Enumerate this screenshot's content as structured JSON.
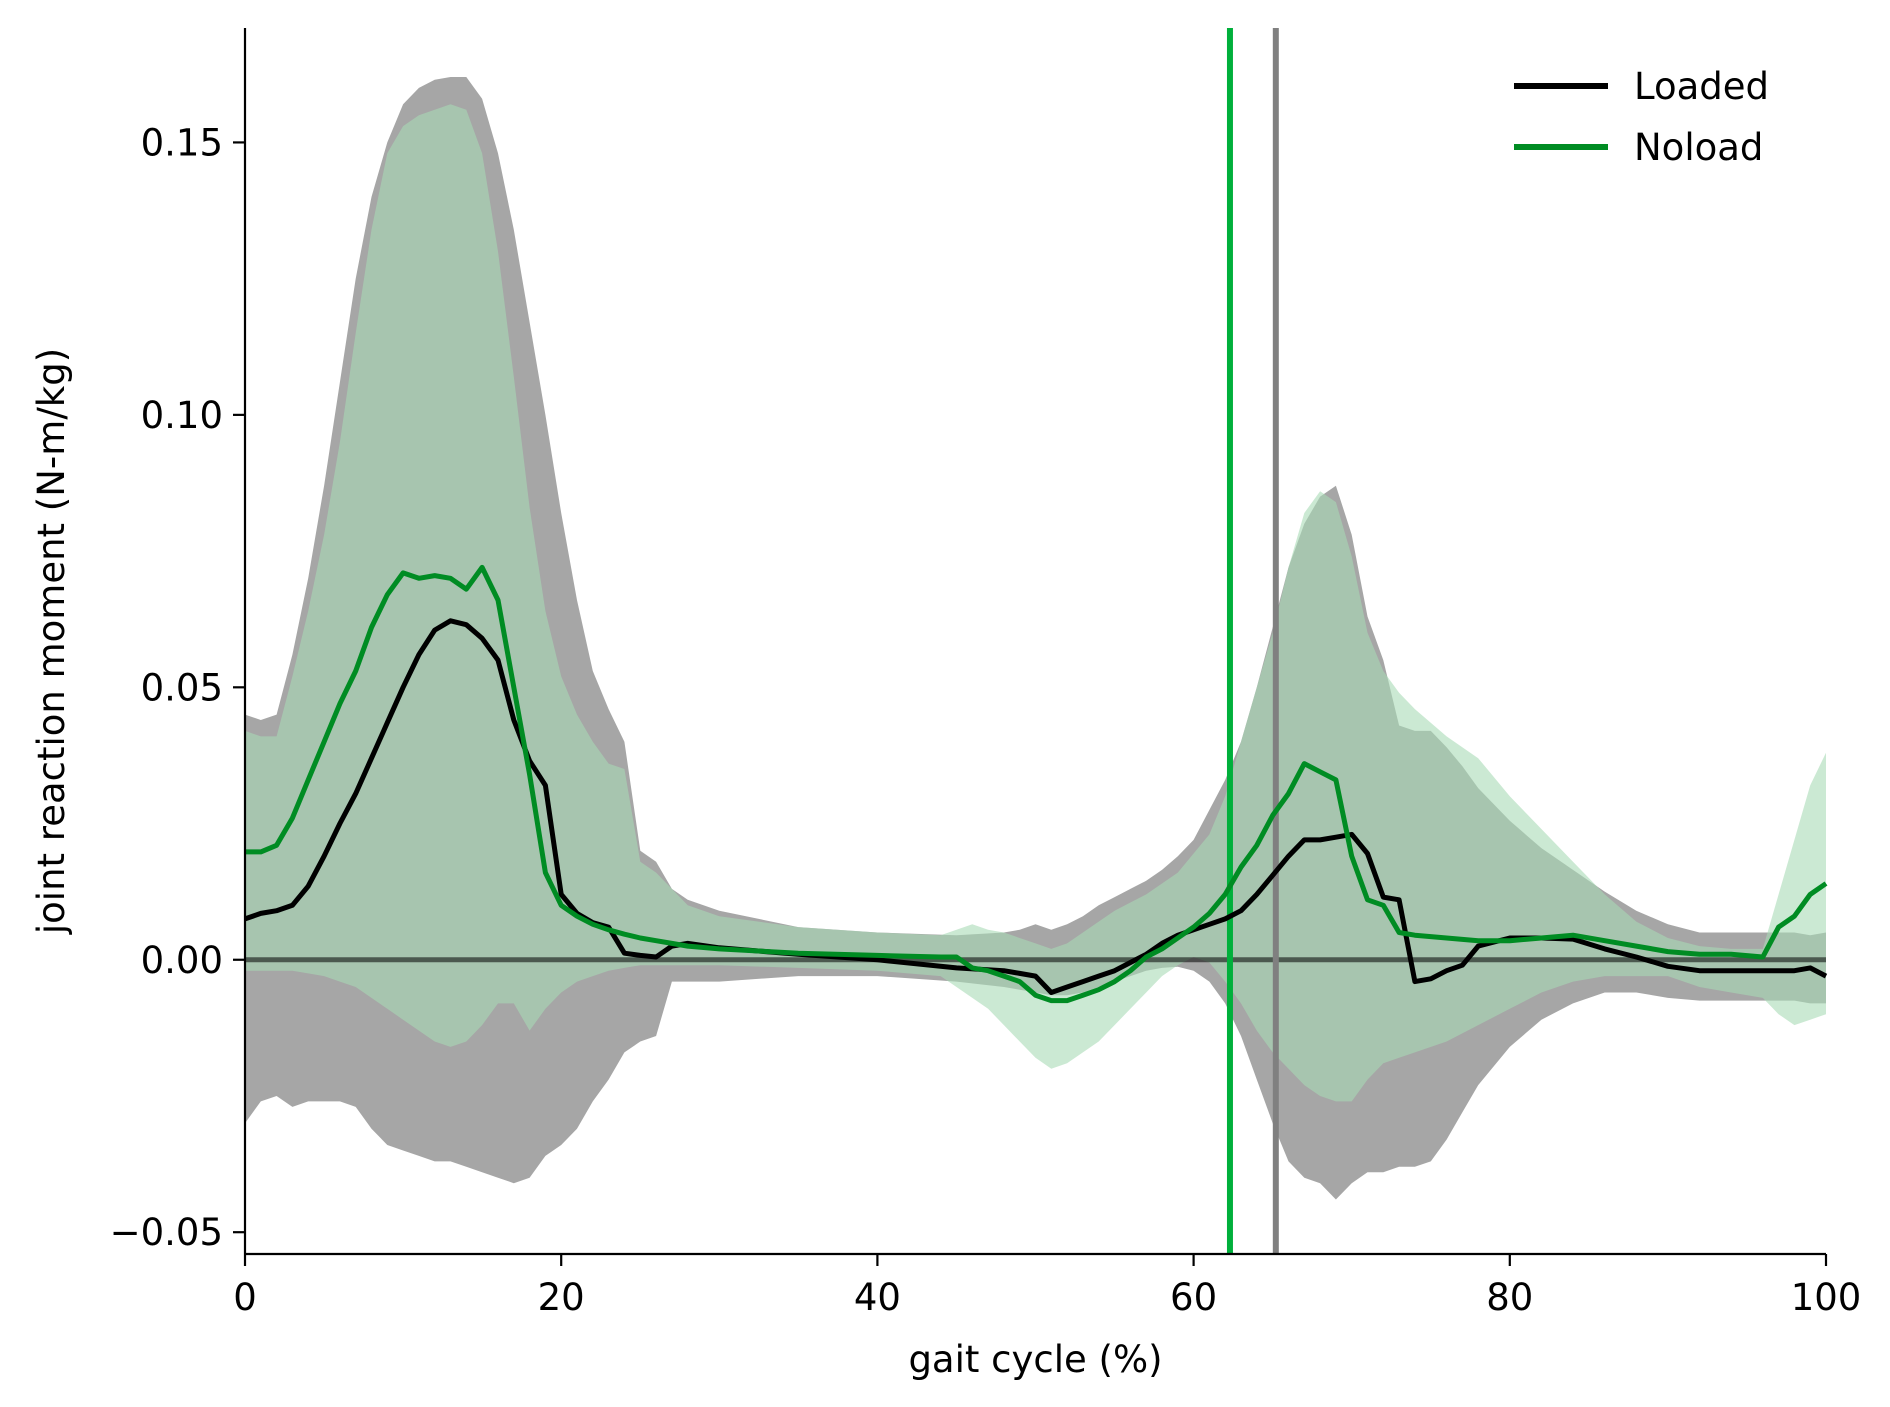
{
  "chart_data": {
    "type": "line",
    "title": "",
    "xlabel": "gait cycle (%)",
    "ylabel": "joint reaction moment (N-m/kg)",
    "xlim": [
      0,
      100
    ],
    "ylim": [
      -0.054,
      0.171
    ],
    "xticks": [
      0,
      20,
      40,
      60,
      80,
      100
    ],
    "xtick_labels": [
      "0",
      "20",
      "40",
      "60",
      "80",
      "100"
    ],
    "yticks": [
      -0.05,
      0,
      0.05,
      0.1,
      0.15
    ],
    "ytick_labels": [
      "−0.05",
      "0.00",
      "0.05",
      "0.10",
      "0.15"
    ],
    "grid": false,
    "legend_position": "top-right",
    "zero_line": 0,
    "series": [
      {
        "name": "Loaded",
        "color": "#000000",
        "band_color": "#a6a6a6",
        "x": [
          0,
          1,
          2,
          3,
          4,
          5,
          6,
          7,
          8,
          9,
          10,
          11,
          12,
          13,
          14,
          15,
          16,
          17,
          18,
          19,
          20,
          21,
          22,
          23,
          24,
          25,
          26,
          27,
          28,
          30,
          35,
          40,
          45,
          48,
          49,
          50,
          51,
          52,
          53,
          54,
          55,
          56,
          57,
          58,
          59,
          60,
          61,
          62,
          63,
          64,
          65,
          66,
          67,
          68,
          69,
          70,
          71,
          72,
          73,
          74,
          75,
          76,
          77,
          78,
          80,
          82,
          84,
          86,
          88,
          90,
          92,
          94,
          96,
          98,
          99,
          100
        ],
        "mean": [
          0.0075,
          0.0085,
          0.009,
          0.01,
          0.0135,
          0.019,
          0.025,
          0.0305,
          0.037,
          0.0435,
          0.05,
          0.056,
          0.0605,
          0.0622,
          0.0615,
          0.059,
          0.055,
          0.044,
          0.0365,
          0.032,
          0.012,
          0.0085,
          0.0068,
          0.006,
          0.0012,
          0.0008,
          0.0005,
          0.0025,
          0.003,
          0.0022,
          0.001,
          0.0,
          -0.0015,
          -0.002,
          -0.0025,
          -0.003,
          -0.006,
          -0.005,
          -0.004,
          -0.003,
          -0.002,
          -0.0005,
          0.001,
          0.003,
          0.0045,
          0.0055,
          0.0065,
          0.0075,
          0.009,
          0.012,
          0.0155,
          0.019,
          0.022,
          0.022,
          0.0225,
          0.023,
          0.0195,
          0.0115,
          0.011,
          -0.004,
          -0.0035,
          -0.002,
          -0.001,
          0.0025,
          0.004,
          0.004,
          0.0038,
          0.002,
          0.0005,
          -0.0012,
          -0.002,
          -0.002,
          -0.002,
          -0.002,
          -0.0015,
          -0.003
        ],
        "upper": [
          0.045,
          0.044,
          0.045,
          0.056,
          0.07,
          0.087,
          0.106,
          0.125,
          0.14,
          0.15,
          0.157,
          0.16,
          0.1615,
          0.162,
          0.162,
          0.158,
          0.148,
          0.134,
          0.117,
          0.1,
          0.082,
          0.066,
          0.053,
          0.046,
          0.04,
          0.02,
          0.018,
          0.013,
          0.011,
          0.009,
          0.006,
          0.005,
          0.0045,
          0.005,
          0.0055,
          0.0065,
          0.0055,
          0.0065,
          0.008,
          0.01,
          0.0115,
          0.013,
          0.0145,
          0.0165,
          0.019,
          0.022,
          0.0275,
          0.033,
          0.04,
          0.05,
          0.061,
          0.072,
          0.08,
          0.085,
          0.087,
          0.078,
          0.063,
          0.055,
          0.043,
          0.042,
          0.042,
          0.039,
          0.0355,
          0.0315,
          0.0255,
          0.0205,
          0.0165,
          0.0125,
          0.009,
          0.0065,
          0.005,
          0.005,
          0.005,
          0.005,
          0.0045,
          0.005
        ],
        "lower": [
          -0.03,
          -0.026,
          -0.025,
          -0.027,
          -0.026,
          -0.026,
          -0.026,
          -0.027,
          -0.031,
          -0.034,
          -0.035,
          -0.036,
          -0.037,
          -0.037,
          -0.038,
          -0.039,
          -0.04,
          -0.041,
          -0.04,
          -0.036,
          -0.034,
          -0.031,
          -0.026,
          -0.022,
          -0.017,
          -0.015,
          -0.014,
          -0.004,
          -0.004,
          -0.004,
          -0.003,
          -0.003,
          -0.004,
          -0.005,
          -0.0055,
          -0.006,
          -0.0065,
          -0.0065,
          -0.006,
          -0.005,
          -0.004,
          -0.003,
          -0.002,
          -0.0015,
          -0.0013,
          -0.002,
          -0.004,
          -0.008,
          -0.014,
          -0.022,
          -0.03,
          -0.037,
          -0.04,
          -0.041,
          -0.044,
          -0.041,
          -0.039,
          -0.039,
          -0.038,
          -0.038,
          -0.037,
          -0.033,
          -0.028,
          -0.023,
          -0.016,
          -0.011,
          -0.008,
          -0.006,
          -0.006,
          -0.007,
          -0.0075,
          -0.0075,
          -0.0075,
          -0.0075,
          -0.008,
          -0.008
        ]
      },
      {
        "name": "Noload",
        "color": "#008c23",
        "band_color": "#a8dab5",
        "x": [
          0,
          1,
          2,
          3,
          4,
          5,
          6,
          7,
          8,
          9,
          10,
          11,
          12,
          13,
          14,
          15,
          16,
          17,
          18,
          19,
          20,
          21,
          22,
          23,
          24,
          25,
          26,
          27,
          28,
          30,
          35,
          40,
          44,
          45,
          46,
          47,
          48,
          49,
          50,
          51,
          52,
          53,
          54,
          55,
          56,
          57,
          58,
          59,
          60,
          61,
          62,
          63,
          64,
          65,
          66,
          67,
          68,
          69,
          70,
          71,
          72,
          73,
          74,
          76,
          78,
          80,
          82,
          84,
          86,
          88,
          90,
          92,
          94,
          96,
          97,
          98,
          99,
          100
        ],
        "mean": [
          0.0198,
          0.0198,
          0.021,
          0.026,
          0.033,
          0.04,
          0.047,
          0.053,
          0.061,
          0.067,
          0.071,
          0.07,
          0.0705,
          0.07,
          0.068,
          0.072,
          0.066,
          0.05,
          0.034,
          0.016,
          0.01,
          0.008,
          0.0065,
          0.0055,
          0.0047,
          0.004,
          0.0035,
          0.003,
          0.0025,
          0.002,
          0.0012,
          0.0008,
          0.0005,
          0.0005,
          -0.0015,
          -0.002,
          -0.003,
          -0.004,
          -0.0065,
          -0.0075,
          -0.0075,
          -0.0065,
          -0.0055,
          -0.004,
          -0.002,
          0.0005,
          0.002,
          0.004,
          0.006,
          0.0085,
          0.012,
          0.017,
          0.021,
          0.0265,
          0.0305,
          0.036,
          0.0345,
          0.033,
          0.019,
          0.011,
          0.01,
          0.005,
          0.0045,
          0.004,
          0.0035,
          0.0035,
          0.004,
          0.0045,
          0.0035,
          0.0025,
          0.0015,
          0.001,
          0.001,
          0.0005,
          0.006,
          0.008,
          0.012,
          0.014
        ],
        "upper": [
          0.042,
          0.041,
          0.041,
          0.052,
          0.064,
          0.078,
          0.095,
          0.115,
          0.134,
          0.148,
          0.153,
          0.155,
          0.156,
          0.157,
          0.156,
          0.148,
          0.13,
          0.107,
          0.083,
          0.064,
          0.052,
          0.045,
          0.04,
          0.036,
          0.035,
          0.018,
          0.016,
          0.013,
          0.01,
          0.008,
          0.006,
          0.005,
          0.0045,
          0.0055,
          0.0065,
          0.0055,
          0.005,
          0.004,
          0.003,
          0.002,
          0.003,
          0.005,
          0.007,
          0.009,
          0.0105,
          0.012,
          0.014,
          0.016,
          0.0195,
          0.023,
          0.03,
          0.04,
          0.05,
          0.06,
          0.072,
          0.082,
          0.086,
          0.084,
          0.074,
          0.06,
          0.053,
          0.049,
          0.046,
          0.041,
          0.037,
          0.03,
          0.024,
          0.018,
          0.012,
          0.007,
          0.004,
          0.0025,
          0.002,
          0.002,
          0.012,
          0.022,
          0.032,
          0.038
        ],
        "lower": [
          -0.002,
          -0.002,
          -0.002,
          -0.002,
          -0.0025,
          -0.003,
          -0.004,
          -0.005,
          -0.007,
          -0.009,
          -0.011,
          -0.013,
          -0.015,
          -0.016,
          -0.015,
          -0.012,
          -0.008,
          -0.008,
          -0.013,
          -0.009,
          -0.006,
          -0.004,
          -0.003,
          -0.002,
          -0.0015,
          -0.001,
          -0.001,
          -0.001,
          -0.001,
          -0.001,
          -0.0015,
          -0.002,
          -0.003,
          -0.005,
          -0.007,
          -0.009,
          -0.012,
          -0.015,
          -0.018,
          -0.02,
          -0.019,
          -0.017,
          -0.015,
          -0.012,
          -0.009,
          -0.006,
          -0.003,
          -0.001,
          0.0005,
          -0.0005,
          -0.004,
          -0.008,
          -0.013,
          -0.017,
          -0.02,
          -0.023,
          -0.025,
          -0.026,
          -0.026,
          -0.022,
          -0.019,
          -0.018,
          -0.017,
          -0.015,
          -0.012,
          -0.009,
          -0.006,
          -0.004,
          -0.003,
          -0.003,
          -0.003,
          -0.005,
          -0.006,
          -0.007,
          -0.01,
          -0.012,
          -0.011,
          -0.01
        ]
      }
    ],
    "vlines": [
      {
        "x": 62.3,
        "color": "#00b03b"
      },
      {
        "x": 65.2,
        "color": "#808080"
      }
    ]
  }
}
